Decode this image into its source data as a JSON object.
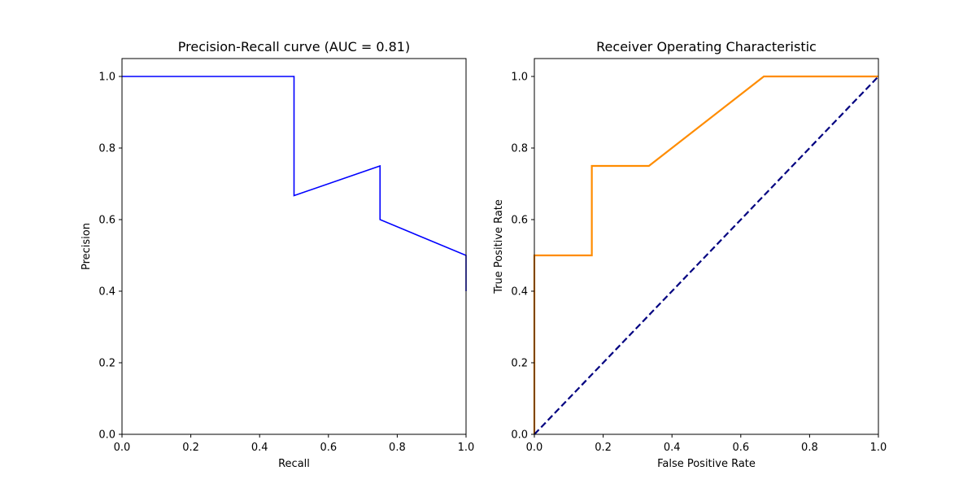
{
  "chart_data": [
    {
      "type": "line",
      "title": "Precision-Recall curve (AUC = 0.81)",
      "xlabel": "Recall",
      "ylabel": "Precision",
      "xlim": [
        0.0,
        1.0
      ],
      "ylim": [
        0.0,
        1.05
      ],
      "xticks": [
        "0.0",
        "0.2",
        "0.4",
        "0.6",
        "0.8",
        "1.0"
      ],
      "yticks": [
        "0.0",
        "0.2",
        "0.4",
        "0.6",
        "0.8",
        "1.0"
      ],
      "grid": false,
      "series": [
        {
          "color": "#0000ff",
          "line_style": "solid",
          "x": [
            0.0,
            0.5,
            0.5,
            0.75,
            0.75,
            1.0,
            1.0
          ],
          "y": [
            1.0,
            1.0,
            0.667,
            0.75,
            0.6,
            0.5,
            0.4
          ]
        }
      ]
    },
    {
      "type": "line",
      "title": "Receiver Operating Characteristic",
      "xlabel": "False Positive Rate",
      "ylabel": "True Positive Rate",
      "xlim": [
        0.0,
        1.0
      ],
      "ylim": [
        0.0,
        1.05
      ],
      "xticks": [
        "0.0",
        "0.2",
        "0.4",
        "0.6",
        "0.8",
        "1.0"
      ],
      "yticks": [
        "0.0",
        "0.2",
        "0.4",
        "0.6",
        "0.8",
        "1.0"
      ],
      "grid": false,
      "series": [
        {
          "color": "#ff8c00",
          "line_style": "solid",
          "x": [
            0.0,
            0.0,
            0.167,
            0.167,
            0.333,
            0.667,
            1.0
          ],
          "y": [
            0.0,
            0.5,
            0.5,
            0.75,
            0.75,
            1.0,
            1.0
          ]
        },
        {
          "color": "#000080",
          "line_style": "dashed",
          "x": [
            0.0,
            1.0
          ],
          "y": [
            0.0,
            1.0
          ]
        }
      ]
    }
  ]
}
